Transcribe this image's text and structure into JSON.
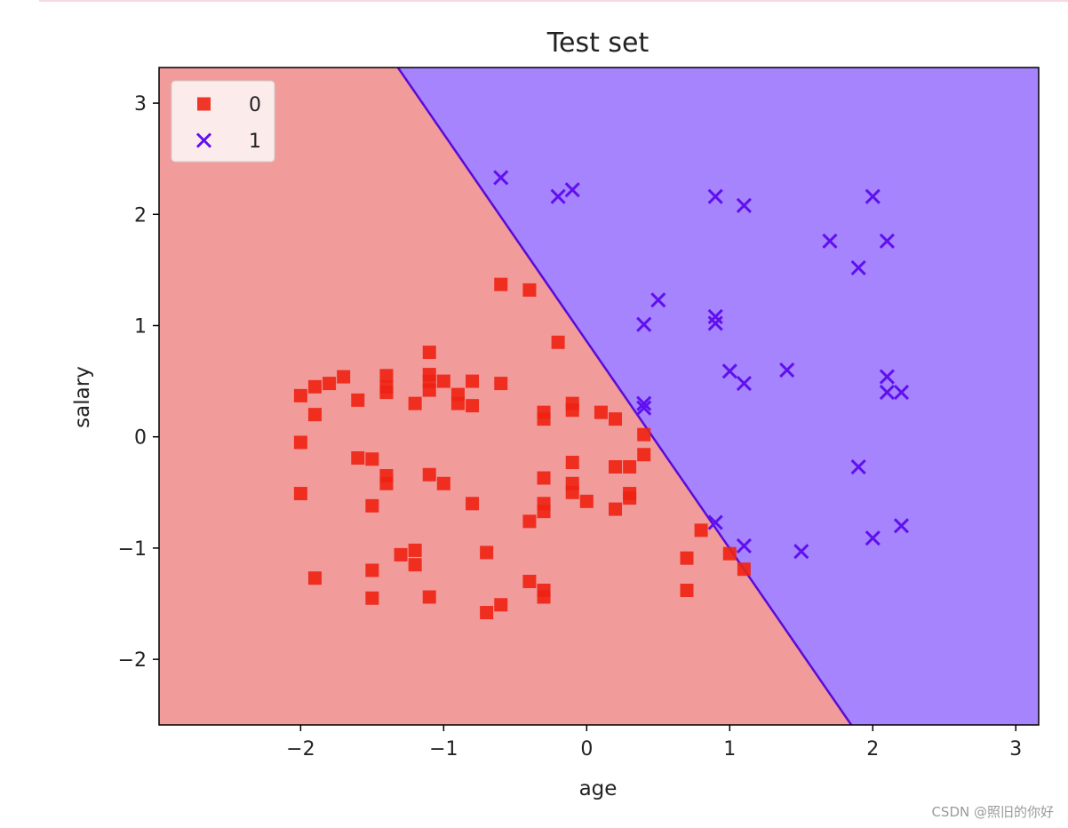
{
  "watermark": "CSDN @照旧的你好",
  "colors": {
    "class0_region": "#f19b9a",
    "class1_region": "#a584fd",
    "class0_marker": "#ee2213",
    "class1_marker": "#6010f0",
    "boundary": "#5b0bd8"
  },
  "chart_data": {
    "type": "scatter",
    "title": "Test set",
    "xlabel": "age",
    "ylabel": "salary",
    "xlim": [
      -2.99,
      3.16
    ],
    "ylim": [
      -2.59,
      3.32
    ],
    "xticks": [
      -2,
      -1,
      0,
      1,
      2,
      3
    ],
    "xtick_labels": [
      "−2",
      "−1",
      "0",
      "1",
      "2",
      "3"
    ],
    "yticks": [
      -2,
      -1,
      0,
      1,
      2,
      3
    ],
    "ytick_labels": [
      "−2",
      "−1",
      "0",
      "1",
      "2",
      "3"
    ],
    "grid": false,
    "legend_position": "top-left",
    "decision_boundary": [
      [
        -1.32,
        3.32
      ],
      [
        1.85,
        -2.59
      ]
    ],
    "series": [
      {
        "name": "0",
        "marker": "square",
        "points": [
          [
            -2.0,
            0.37
          ],
          [
            -1.9,
            0.45
          ],
          [
            -1.8,
            0.48
          ],
          [
            -1.7,
            0.54
          ],
          [
            -1.9,
            0.2
          ],
          [
            -1.6,
            0.33
          ],
          [
            -1.4,
            0.55
          ],
          [
            -1.4,
            0.45
          ],
          [
            -1.4,
            0.4
          ],
          [
            -1.2,
            0.3
          ],
          [
            -1.1,
            0.76
          ],
          [
            -1.1,
            0.56
          ],
          [
            -1.1,
            0.5
          ],
          [
            -1.1,
            0.42
          ],
          [
            -1.0,
            0.5
          ],
          [
            -0.9,
            0.38
          ],
          [
            -0.9,
            0.3
          ],
          [
            -0.8,
            0.5
          ],
          [
            -0.8,
            0.28
          ],
          [
            -0.6,
            0.48
          ],
          [
            -0.6,
            1.37
          ],
          [
            -0.4,
            1.32
          ],
          [
            -0.2,
            0.85
          ],
          [
            -0.3,
            0.22
          ],
          [
            -0.3,
            0.16
          ],
          [
            -0.1,
            0.3
          ],
          [
            -0.1,
            0.24
          ],
          [
            0.1,
            0.22
          ],
          [
            0.2,
            0.16
          ],
          [
            0.4,
            0.02
          ],
          [
            -2.0,
            -0.05
          ],
          [
            -2.0,
            -0.51
          ],
          [
            -1.6,
            -0.19
          ],
          [
            -1.5,
            -0.2
          ],
          [
            -1.4,
            -0.35
          ],
          [
            -1.4,
            -0.42
          ],
          [
            -1.5,
            -0.62
          ],
          [
            -1.1,
            -0.34
          ],
          [
            -1.0,
            -0.42
          ],
          [
            -0.8,
            -0.6
          ],
          [
            -0.4,
            -0.76
          ],
          [
            -0.3,
            -0.6
          ],
          [
            -0.3,
            -0.67
          ],
          [
            -0.3,
            -0.37
          ],
          [
            -0.1,
            -0.23
          ],
          [
            -0.1,
            -0.42
          ],
          [
            -0.1,
            -0.5
          ],
          [
            0.0,
            -0.58
          ],
          [
            0.2,
            -0.27
          ],
          [
            0.3,
            -0.27
          ],
          [
            0.4,
            -0.16
          ],
          [
            0.3,
            -0.51
          ],
          [
            0.3,
            -0.55
          ],
          [
            0.2,
            -0.65
          ],
          [
            -1.9,
            -1.27
          ],
          [
            -1.5,
            -1.2
          ],
          [
            -1.5,
            -1.45
          ],
          [
            -1.3,
            -1.06
          ],
          [
            -1.2,
            -1.02
          ],
          [
            -1.2,
            -1.15
          ],
          [
            -1.1,
            -1.44
          ],
          [
            -0.7,
            -1.04
          ],
          [
            -0.7,
            -1.58
          ],
          [
            -0.6,
            -1.51
          ],
          [
            -0.4,
            -1.3
          ],
          [
            -0.3,
            -1.38
          ],
          [
            -0.3,
            -1.44
          ],
          [
            0.7,
            -1.09
          ],
          [
            0.7,
            -1.38
          ],
          [
            0.8,
            -0.84
          ],
          [
            1.0,
            -1.05
          ],
          [
            1.1,
            -1.19
          ]
        ]
      },
      {
        "name": "1",
        "marker": "x",
        "points": [
          [
            -0.6,
            2.33
          ],
          [
            -0.2,
            2.16
          ],
          [
            -0.1,
            2.22
          ],
          [
            0.9,
            2.16
          ],
          [
            1.1,
            2.08
          ],
          [
            2.0,
            2.16
          ],
          [
            1.7,
            1.76
          ],
          [
            2.1,
            1.76
          ],
          [
            1.9,
            1.52
          ],
          [
            0.5,
            1.23
          ],
          [
            0.4,
            1.01
          ],
          [
            0.9,
            1.08
          ],
          [
            0.9,
            1.02
          ],
          [
            1.0,
            0.59
          ],
          [
            1.1,
            0.48
          ],
          [
            1.4,
            0.6
          ],
          [
            2.1,
            0.54
          ],
          [
            2.1,
            0.4
          ],
          [
            2.2,
            0.4
          ],
          [
            0.4,
            0.3
          ],
          [
            0.4,
            0.26
          ],
          [
            1.9,
            -0.27
          ],
          [
            0.9,
            -0.77
          ],
          [
            1.1,
            -0.98
          ],
          [
            1.5,
            -1.03
          ],
          [
            2.0,
            -0.91
          ],
          [
            2.2,
            -0.8
          ]
        ]
      }
    ]
  }
}
